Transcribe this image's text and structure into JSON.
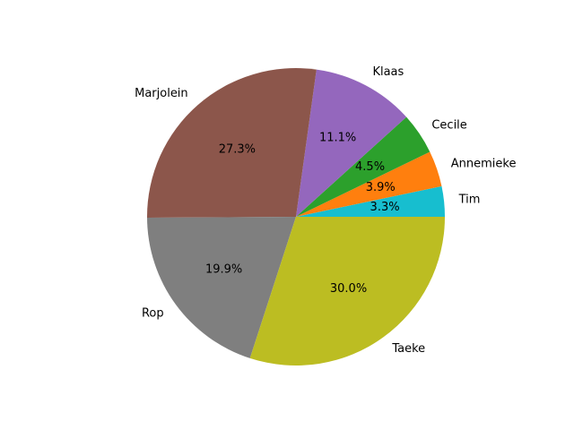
{
  "chart_data": {
    "type": "pie",
    "start_angle_deg": 0,
    "direction": "counterclockwise",
    "slices": [
      {
        "label": "Tim",
        "value": 3.3,
        "pct_label": "3.3%",
        "color": "#17becf"
      },
      {
        "label": "Annemieke",
        "value": 3.9,
        "pct_label": "3.9%",
        "color": "#ff7f0e"
      },
      {
        "label": "Cecile",
        "value": 4.5,
        "pct_label": "4.5%",
        "color": "#2ca02c"
      },
      {
        "label": "Klaas",
        "value": 11.1,
        "pct_label": "11.1%",
        "color": "#9467bd"
      },
      {
        "label": "Marjolein",
        "value": 27.3,
        "pct_label": "27.3%",
        "color": "#8c564b"
      },
      {
        "label": "Rop",
        "value": 19.9,
        "pct_label": "19.9%",
        "color": "#7f7f7f"
      },
      {
        "label": "Taeke",
        "value": 30.0,
        "pct_label": "30.0%",
        "color": "#bcbd22"
      }
    ],
    "legend": "none",
    "title": ""
  }
}
